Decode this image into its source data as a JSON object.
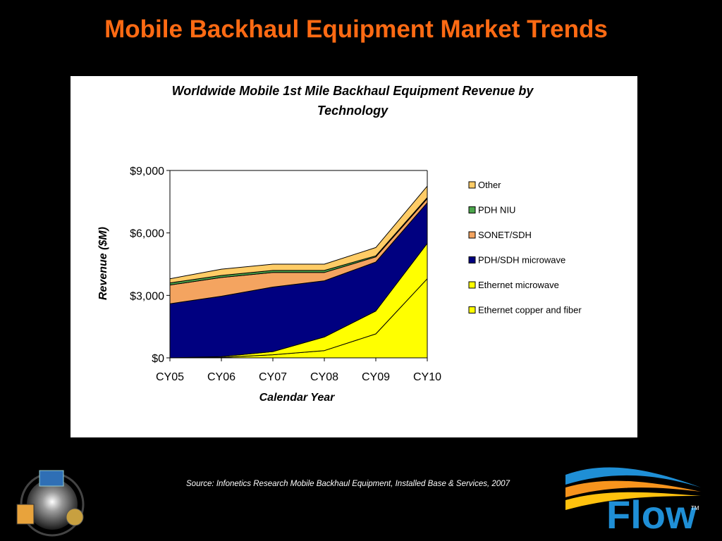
{
  "slide": {
    "title": "Mobile Backhaul Equipment Market Trends",
    "source_note": "Source: Infonetics Research Mobile Backhaul Equipment, Installed Base & Services, 2007"
  },
  "logos": {
    "left_badge_icon": "globe-badge-icon",
    "right_logo_text": "Flow",
    "right_logo_tm": "TM",
    "right_logo_color": "#1F8FD6",
    "right_logo_accent": "#F7941D"
  },
  "chart_data": {
    "type": "area",
    "stacked": true,
    "title_line1": "Worldwide Mobile 1st Mile Backhaul Equipment Revenue by",
    "title_line2": "Technology",
    "xlabel": "Calendar Year",
    "ylabel": "Revenue ($M)",
    "categories": [
      "CY05",
      "CY06",
      "CY07",
      "CY08",
      "CY09",
      "CY10"
    ],
    "ylim": [
      0,
      9000
    ],
    "yticks": [
      0,
      3000,
      6000,
      9000
    ],
    "ytick_labels": [
      "$0",
      "$3,000",
      "$6,000",
      "$9,000"
    ],
    "grid": false,
    "legend_position": "right",
    "series": [
      {
        "name": "Ethernet copper and fiber",
        "color": "#FFFF00",
        "values": [
          0,
          20,
          150,
          350,
          1150,
          3800
        ]
      },
      {
        "name": "Ethernet microwave",
        "color": "#FFFF00",
        "values": [
          0,
          40,
          150,
          650,
          1100,
          1700
        ]
      },
      {
        "name": "PDH/SDH microwave",
        "color": "#000080",
        "values": [
          2600,
          2900,
          3100,
          2700,
          2350,
          1950
        ]
      },
      {
        "name": "SONET/SDH",
        "color": "#F4A460",
        "values": [
          900,
          900,
          700,
          400,
          250,
          200
        ]
      },
      {
        "name": "PDH NIU",
        "color": "#4CA64C",
        "values": [
          100,
          100,
          100,
          100,
          50,
          50
        ]
      },
      {
        "name": "Other",
        "color": "#FFCC66",
        "values": [
          200,
          300,
          300,
          300,
          400,
          550
        ]
      }
    ],
    "legend_order": [
      "Other",
      "PDH NIU",
      "SONET/SDH",
      "PDH/SDH microwave",
      "Ethernet microwave",
      "Ethernet copper and fiber"
    ]
  }
}
